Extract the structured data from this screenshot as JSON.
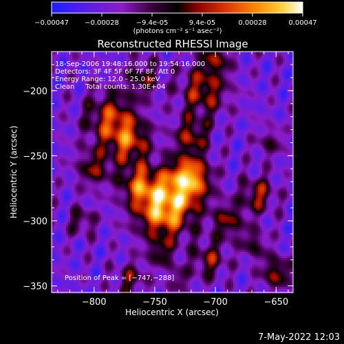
{
  "colorbar": {
    "ticks": [
      "-0.00047",
      "-0.00028",
      "-9.4e-05",
      "9.4e-05",
      "0.00028",
      "0.00047"
    ],
    "unit_label": "(photons cm⁻² s⁻¹ asec⁻²)",
    "colors": [
      "#1e1eff",
      "#8a1cc8",
      "#3a003a",
      "#000000",
      "#8b0000",
      "#e03a00",
      "#ff8c00",
      "#ffd23c",
      "#ffffff"
    ]
  },
  "chart_data": {
    "type": "heatmap",
    "title": "Reconstructed RHESSI Image",
    "xlabel": "Heliocentric X (arcsec)",
    "ylabel": "Heliocentric Y (arcsec)",
    "xlim": [
      -835,
      -636
    ],
    "ylim": [
      -355,
      -170
    ],
    "xticks": [
      -800,
      -750,
      -700,
      -650
    ],
    "yticks": [
      -200,
      -250,
      -300,
      -350
    ],
    "xtick_labels": [
      "−800",
      "−750",
      "−700",
      "−650"
    ],
    "ytick_labels": [
      "−200",
      "−250",
      "−300",
      "−350"
    ],
    "value_range": [
      -0.00047,
      0.00047
    ],
    "peak": {
      "x": -747,
      "y": -288
    },
    "sources": [
      {
        "x": -742,
        "y": -290,
        "sigma": 16,
        "amp": 1.0
      },
      {
        "x": -722,
        "y": -268,
        "sigma": 12,
        "amp": 0.95
      },
      {
        "x": -763,
        "y": -272,
        "sigma": 11,
        "amp": 0.55
      },
      {
        "x": -786,
        "y": -222,
        "sigma": 15,
        "amp": 0.6
      },
      {
        "x": -770,
        "y": -240,
        "sigma": 12,
        "amp": 0.55
      },
      {
        "x": -800,
        "y": -260,
        "sigma": 10,
        "amp": 0.45
      },
      {
        "x": -760,
        "y": -190,
        "sigma": 10,
        "amp": 0.4
      },
      {
        "x": -710,
        "y": -200,
        "sigma": 14,
        "amp": 0.55
      },
      {
        "x": -720,
        "y": -235,
        "sigma": 10,
        "amp": 0.5
      },
      {
        "x": -690,
        "y": -300,
        "sigma": 10,
        "amp": 0.45
      },
      {
        "x": -705,
        "y": -330,
        "sigma": 10,
        "amp": 0.45
      },
      {
        "x": -665,
        "y": -280,
        "sigma": 10,
        "amp": 0.5
      },
      {
        "x": -650,
        "y": -340,
        "sigma": 9,
        "amp": 0.5
      },
      {
        "x": -668,
        "y": -318,
        "sigma": 8,
        "amp": 0.35
      },
      {
        "x": -810,
        "y": -300,
        "sigma": 8,
        "amp": 0.35
      },
      {
        "x": -770,
        "y": -345,
        "sigma": 9,
        "amp": 0.4
      },
      {
        "x": -745,
        "y": -325,
        "sigma": 8,
        "amp": 0.35
      },
      {
        "x": -700,
        "y": -175,
        "sigma": 9,
        "amp": 0.4
      },
      {
        "x": -655,
        "y": -240,
        "sigma": 8,
        "amp": 0.3
      },
      {
        "x": -730,
        "y": -345,
        "sigma": 7,
        "amp": 0.3
      }
    ]
  },
  "annotations": {
    "time_range": "18-Sep-2006 19:48:16.000 to 19:54:16.000",
    "detectors": "Detectors: 3F 4F 5F 6F 7F 8F, Att 0",
    "energy": "Energy Range: 12.0 - 25.0 keV",
    "clean": "Clean     Total counts: 1.30E+04",
    "peak_text": "Position of Peak = [−747,−288]"
  },
  "timestamp": "7-May-2022 12:03"
}
